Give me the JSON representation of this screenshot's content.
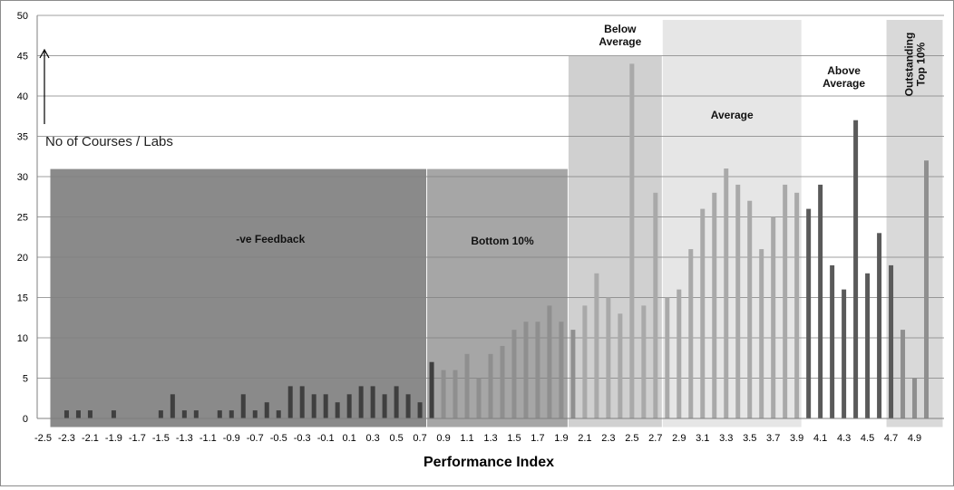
{
  "chart_data": {
    "type": "bar",
    "xlabel": "Performance Index",
    "ylabel": "No of Courses / Labs",
    "ylim": [
      0,
      50
    ],
    "y_ticks": [
      0,
      5,
      10,
      15,
      20,
      25,
      30,
      35,
      40,
      45,
      50
    ],
    "xlim": [
      -2.5,
      5.1
    ],
    "x_ticks": [
      "-2.5",
      "-2.3",
      "-2.1",
      "-1.9",
      "-1.7",
      "-1.5",
      "-1.3",
      "-1.1",
      "-0.9",
      "-0.7",
      "-0.5",
      "-0.3",
      "-0.1",
      "0.1",
      "0.3",
      "0.5",
      "0.7",
      "0.9",
      "1.1",
      "1.3",
      "1.5",
      "1.7",
      "1.9",
      "2.1",
      "2.3",
      "2.5",
      "2.7",
      "2.9",
      "3.1",
      "3.3",
      "3.5",
      "3.7",
      "3.9",
      "4.1",
      "4.3",
      "4.5",
      "4.7",
      "4.9"
    ],
    "grid": "horizontal",
    "zones": [
      {
        "label": "-ve Feedback",
        "x_from": -2.4,
        "x_to": 0.8,
        "height": 31,
        "color": "#8a8a8a"
      },
      {
        "label": "Bottom 10%",
        "x_from": 0.8,
        "x_to": 2.0,
        "height": 31,
        "color": "#a6a6a6"
      },
      {
        "label": "Below Average",
        "x_from": 2.0,
        "x_to": 2.8,
        "height": 45,
        "color": "#d0d0d0"
      },
      {
        "label": "Average",
        "x_from": 2.8,
        "x_to": 3.9,
        "height": 49.5,
        "color": "#e6e6e6"
      },
      {
        "label": "Above Average",
        "x_from": 3.9,
        "x_to": 4.7,
        "height": 0,
        "color": "#ffffff"
      },
      {
        "label": "Outstanding Top 10%",
        "x_from": 4.7,
        "x_to": 5.1,
        "height": 49.5,
        "color": "#d9d9d9"
      }
    ],
    "series": [
      {
        "values": [
          [
            -2.3,
            1
          ],
          [
            -2.2,
            1
          ],
          [
            -2.1,
            1
          ],
          [
            -1.9,
            1
          ],
          [
            -1.5,
            1
          ],
          [
            -1.4,
            3
          ],
          [
            -1.3,
            1
          ],
          [
            -1.2,
            1
          ],
          [
            -1.0,
            1
          ],
          [
            -0.9,
            1
          ],
          [
            -0.8,
            3
          ],
          [
            -0.7,
            1
          ],
          [
            -0.6,
            2
          ],
          [
            -0.5,
            1
          ],
          [
            -0.4,
            4
          ],
          [
            -0.3,
            4
          ],
          [
            -0.2,
            3
          ],
          [
            -0.1,
            3
          ],
          [
            0.0,
            2
          ],
          [
            0.1,
            3
          ],
          [
            0.2,
            4
          ],
          [
            0.3,
            4
          ],
          [
            0.4,
            3
          ],
          [
            0.5,
            4
          ],
          [
            0.6,
            3
          ],
          [
            0.7,
            2
          ],
          [
            0.8,
            7
          ],
          [
            0.9,
            6
          ],
          [
            1.0,
            6
          ],
          [
            1.1,
            8
          ],
          [
            1.2,
            5
          ],
          [
            1.3,
            8
          ],
          [
            1.4,
            9
          ],
          [
            1.5,
            11
          ],
          [
            1.6,
            12
          ],
          [
            1.7,
            12
          ],
          [
            1.8,
            14
          ],
          [
            1.9,
            12
          ],
          [
            2.0,
            11
          ],
          [
            2.1,
            14
          ],
          [
            2.2,
            18
          ],
          [
            2.3,
            15
          ],
          [
            2.4,
            13
          ],
          [
            2.5,
            44
          ],
          [
            2.6,
            14
          ],
          [
            2.7,
            28
          ],
          [
            2.8,
            15
          ],
          [
            2.9,
            16
          ],
          [
            3.0,
            21
          ],
          [
            3.1,
            26
          ],
          [
            3.2,
            28
          ],
          [
            3.3,
            31
          ],
          [
            3.4,
            29
          ],
          [
            3.5,
            27
          ],
          [
            3.6,
            21
          ],
          [
            3.7,
            25
          ],
          [
            3.8,
            29
          ],
          [
            3.9,
            28
          ],
          [
            4.0,
            26
          ],
          [
            4.1,
            29
          ],
          [
            4.2,
            19
          ],
          [
            4.3,
            16
          ],
          [
            4.4,
            37
          ],
          [
            4.5,
            18
          ],
          [
            4.6,
            23
          ],
          [
            4.7,
            19
          ],
          [
            4.8,
            11
          ],
          [
            4.9,
            5
          ],
          [
            5.0,
            32
          ]
        ]
      }
    ],
    "bar_colors": {
      "dark": "#3f3f3f",
      "mid": "#8f8f8f",
      "light": "#a9a9a9",
      "strong": "#5a5a5a"
    }
  }
}
